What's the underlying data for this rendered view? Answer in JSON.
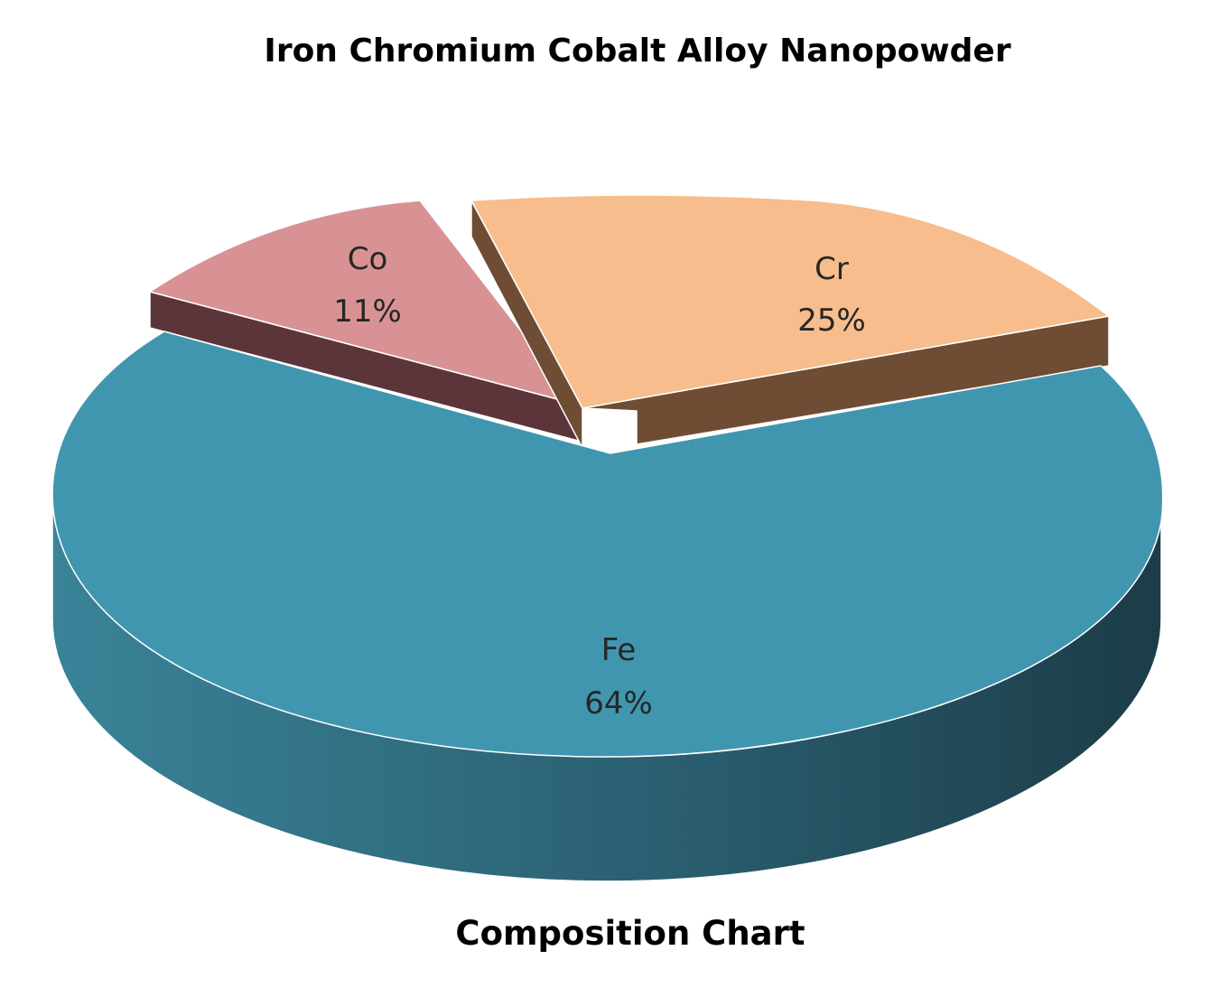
{
  "chart_data": {
    "type": "pie",
    "title": "Iron Chromium Cobalt Alloy Nanopowder",
    "subtitle": "Composition Chart",
    "slices": [
      {
        "label": "Fe",
        "value": 64,
        "value_label": "64%",
        "color": "#4196AF",
        "side_color": "#2A6577"
      },
      {
        "label": "Cr",
        "value": 25,
        "value_label": "25%",
        "color": "#F7BD8C",
        "side_color": "#6E4D34"
      },
      {
        "label": "Co",
        "value": 11,
        "value_label": "11%",
        "color": "#D99293",
        "side_color": "#5C353A"
      }
    ],
    "exploded": [
      "Cr",
      "Co"
    ],
    "style": "3d",
    "legend": "none"
  }
}
